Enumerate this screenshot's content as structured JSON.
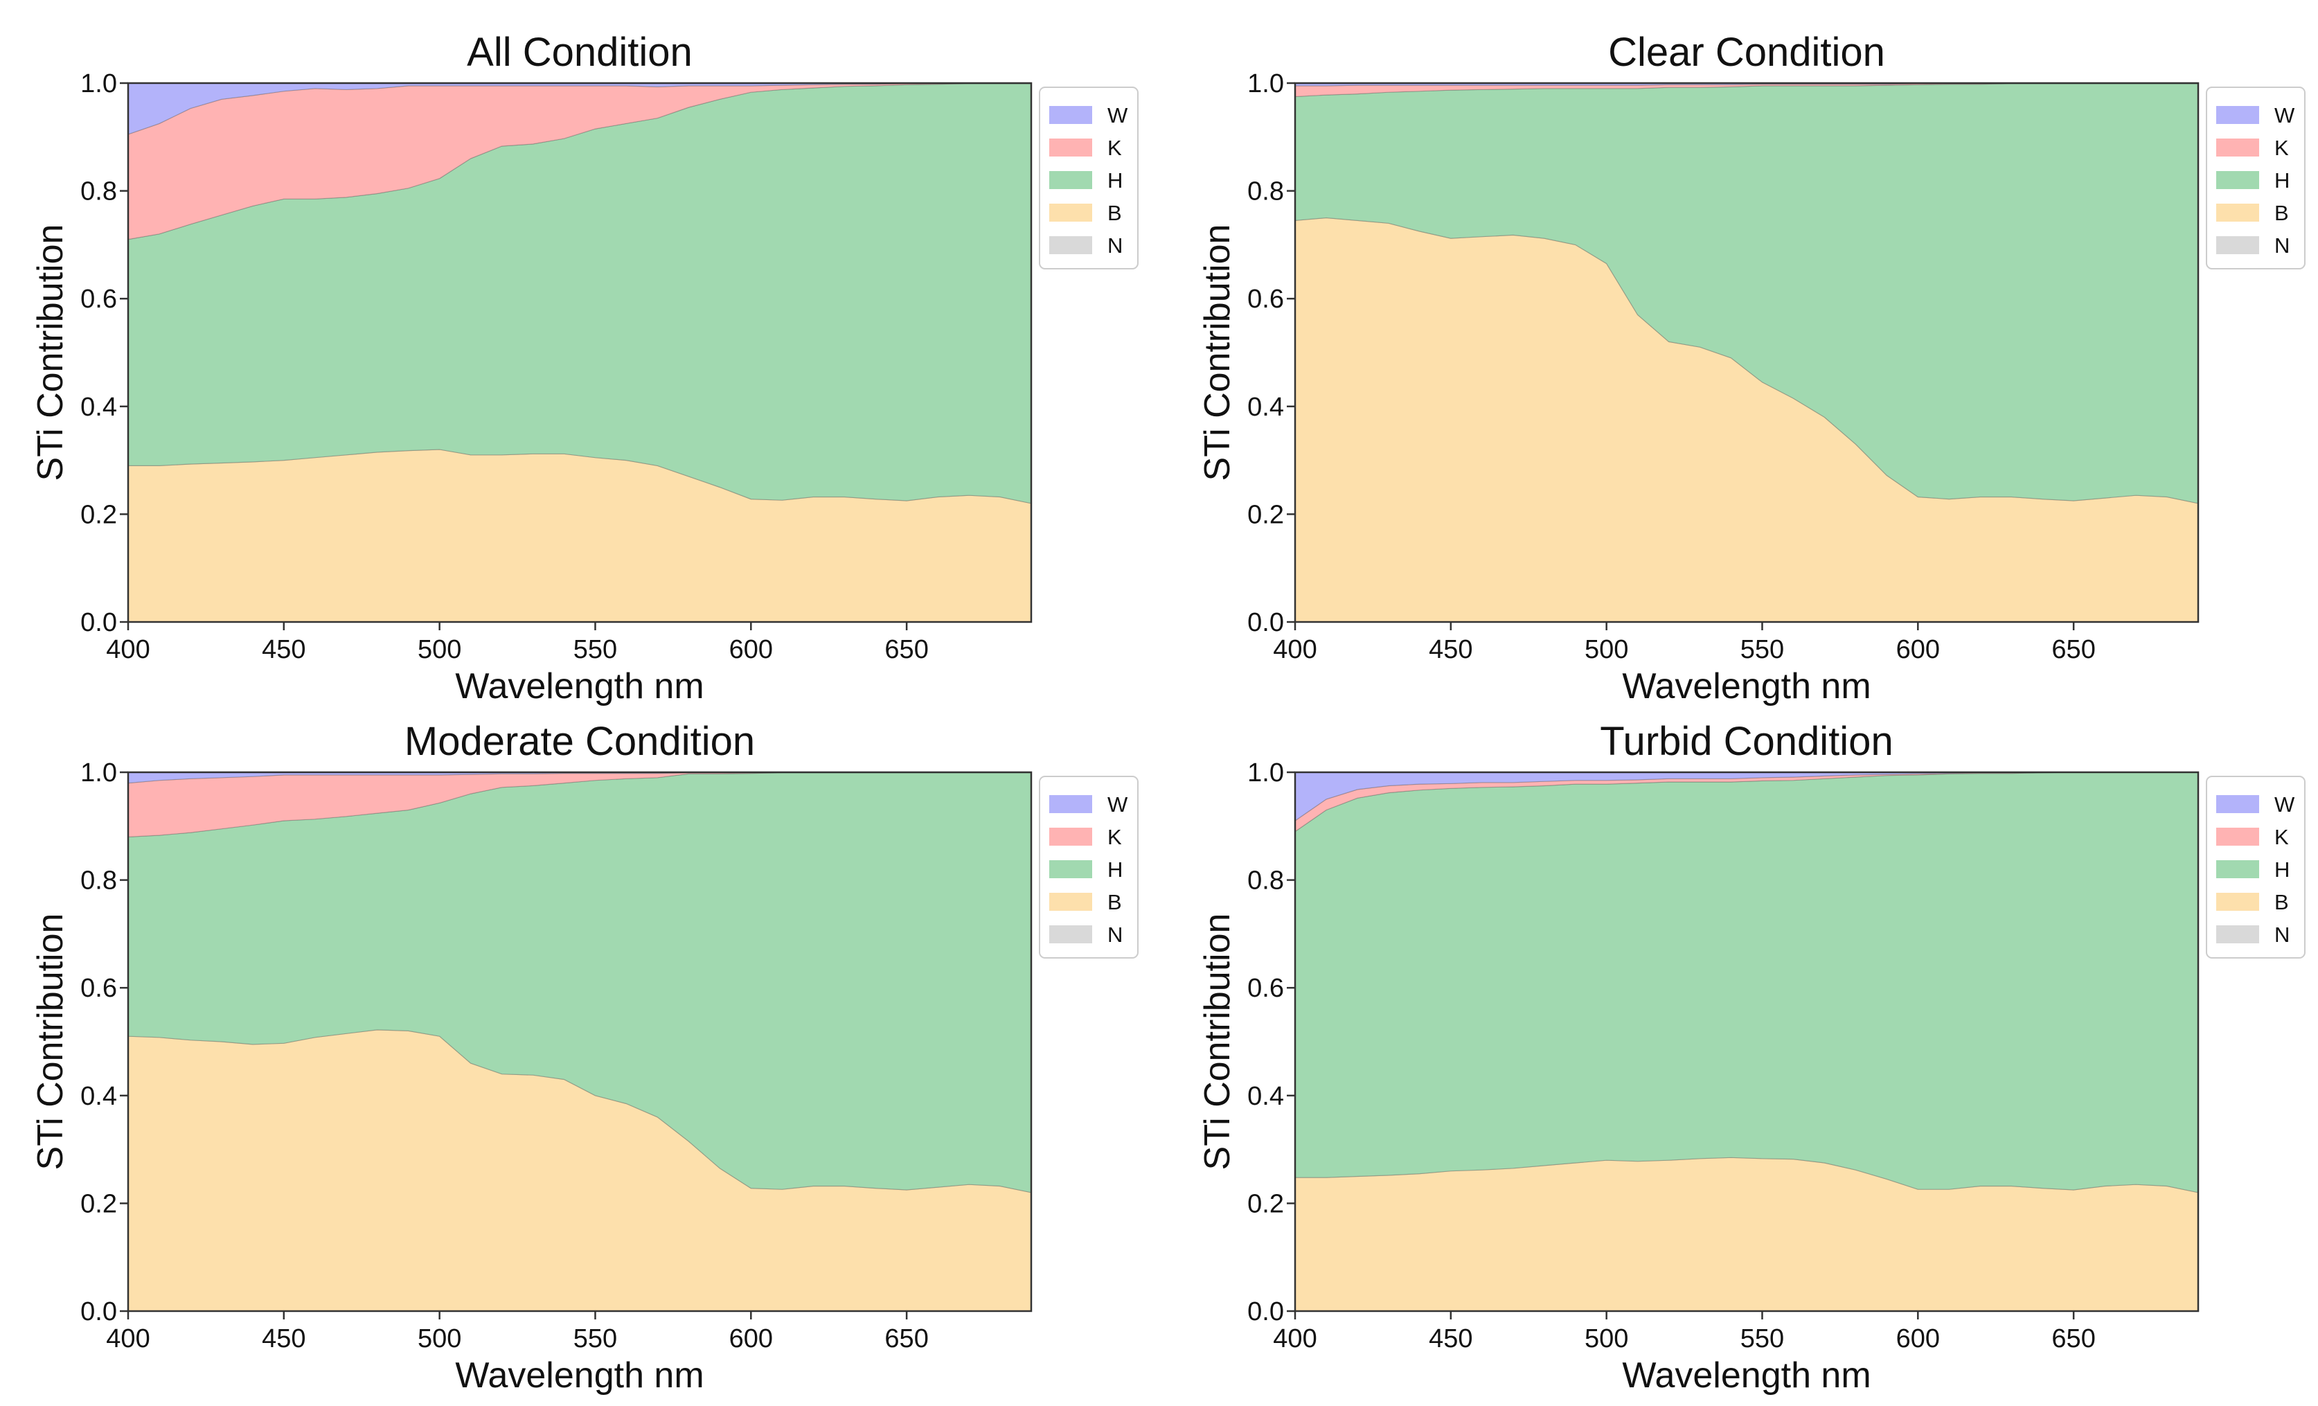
{
  "figure": {
    "title": ""
  },
  "chart_data": [
    {
      "type": "area",
      "stacked": true,
      "title": "All Condition",
      "xlabel": "Wavelength nm",
      "ylabel": "STi Contribution",
      "xlim": [
        400,
        690
      ],
      "ylim": [
        0,
        1
      ],
      "xticks": [
        "400",
        "450",
        "500",
        "550",
        "600",
        "650"
      ],
      "yticks": [
        "0.0",
        "0.2",
        "0.4",
        "0.6",
        "0.8",
        "1.0"
      ],
      "legend_position": "right",
      "x": [
        400,
        410,
        420,
        430,
        440,
        450,
        460,
        470,
        480,
        490,
        500,
        510,
        520,
        530,
        540,
        550,
        560,
        570,
        580,
        590,
        600,
        610,
        620,
        630,
        640,
        650,
        660,
        670,
        680,
        690
      ],
      "series": [
        {
          "name": "N",
          "color": "#d9d9d9",
          "values": [
            0,
            0,
            0,
            0,
            0,
            0,
            0,
            0,
            0,
            0,
            0,
            0,
            0,
            0,
            0,
            0,
            0,
            0,
            0,
            0,
            0,
            0,
            0,
            0,
            0,
            0,
            0,
            0,
            0,
            0
          ]
        },
        {
          "name": "B",
          "color": "#fde0ac",
          "values": [
            0.29,
            0.29,
            0.293,
            0.295,
            0.297,
            0.3,
            0.305,
            0.31,
            0.315,
            0.318,
            0.32,
            0.31,
            0.31,
            0.312,
            0.312,
            0.305,
            0.3,
            0.29,
            0.27,
            0.25,
            0.228,
            0.226,
            0.232,
            0.232,
            0.228,
            0.225,
            0.232,
            0.235,
            0.232,
            0.22
          ]
        },
        {
          "name": "H",
          "color": "#a1d9b0",
          "values": [
            0.42,
            0.43,
            0.445,
            0.46,
            0.475,
            0.485,
            0.48,
            0.478,
            0.48,
            0.487,
            0.503,
            0.55,
            0.573,
            0.575,
            0.585,
            0.61,
            0.625,
            0.645,
            0.685,
            0.72,
            0.755,
            0.762,
            0.759,
            0.762,
            0.767,
            0.772,
            0.766,
            0.764,
            0.767,
            0.779
          ]
        },
        {
          "name": "K",
          "color": "#ffb3b3",
          "values": [
            0.195,
            0.205,
            0.215,
            0.215,
            0.205,
            0.2,
            0.205,
            0.2,
            0.195,
            0.19,
            0.172,
            0.135,
            0.112,
            0.108,
            0.098,
            0.08,
            0.07,
            0.058,
            0.04,
            0.025,
            0.012,
            0.008,
            0.006,
            0.004,
            0.003,
            0.002,
            0.001,
            0.001,
            0.001,
            0.001
          ]
        },
        {
          "name": "W",
          "color": "#b3b3fa",
          "values": [
            0.095,
            0.075,
            0.047,
            0.03,
            0.023,
            0.015,
            0.01,
            0.012,
            0.01,
            0.005,
            0.005,
            0.005,
            0.005,
            0.005,
            0.005,
            0.005,
            0.005,
            0.007,
            0.005,
            0.005,
            0.005,
            0.004,
            0.003,
            0.002,
            0.002,
            0.001,
            0.001,
            0,
            0,
            0
          ]
        }
      ]
    },
    {
      "type": "area",
      "stacked": true,
      "title": "Clear Condition",
      "xlabel": "Wavelength nm",
      "ylabel": "STi Contribution",
      "xlim": [
        400,
        690
      ],
      "ylim": [
        0,
        1
      ],
      "xticks": [
        "400",
        "450",
        "500",
        "550",
        "600",
        "650"
      ],
      "yticks": [
        "0.0",
        "0.2",
        "0.4",
        "0.6",
        "0.8",
        "1.0"
      ],
      "legend_position": "right",
      "x": [
        400,
        410,
        420,
        430,
        440,
        450,
        460,
        470,
        480,
        490,
        500,
        510,
        520,
        530,
        540,
        550,
        560,
        570,
        580,
        590,
        600,
        610,
        620,
        630,
        640,
        650,
        660,
        670,
        680,
        690
      ],
      "series": [
        {
          "name": "N",
          "color": "#d9d9d9",
          "values": [
            0,
            0,
            0,
            0,
            0,
            0,
            0,
            0,
            0,
            0,
            0,
            0,
            0,
            0,
            0,
            0,
            0,
            0,
            0,
            0,
            0,
            0,
            0,
            0,
            0,
            0,
            0,
            0,
            0,
            0
          ]
        },
        {
          "name": "B",
          "color": "#fde0ac",
          "values": [
            0.745,
            0.75,
            0.745,
            0.74,
            0.725,
            0.712,
            0.715,
            0.718,
            0.712,
            0.7,
            0.665,
            0.57,
            0.52,
            0.51,
            0.49,
            0.445,
            0.415,
            0.38,
            0.33,
            0.272,
            0.232,
            0.228,
            0.232,
            0.232,
            0.228,
            0.225,
            0.23,
            0.235,
            0.232,
            0.22
          ]
        },
        {
          "name": "H",
          "color": "#a1d9b0",
          "values": [
            0.23,
            0.228,
            0.235,
            0.243,
            0.26,
            0.275,
            0.273,
            0.271,
            0.278,
            0.29,
            0.325,
            0.42,
            0.472,
            0.482,
            0.503,
            0.55,
            0.58,
            0.615,
            0.665,
            0.724,
            0.765,
            0.77,
            0.766,
            0.767,
            0.771,
            0.774,
            0.769,
            0.764,
            0.767,
            0.779
          ]
        },
        {
          "name": "K",
          "color": "#ffb3b3",
          "values": [
            0.02,
            0.017,
            0.016,
            0.013,
            0.011,
            0.009,
            0.008,
            0.007,
            0.006,
            0.006,
            0.006,
            0.006,
            0.005,
            0.005,
            0.004,
            0.003,
            0.003,
            0.003,
            0.003,
            0.002,
            0.002,
            0.001,
            0.001,
            0.001,
            0.001,
            0.001,
            0.001,
            0.001,
            0.001,
            0.001
          ]
        },
        {
          "name": "W",
          "color": "#b3b3fa",
          "values": [
            0.005,
            0.005,
            0.004,
            0.004,
            0.004,
            0.004,
            0.004,
            0.004,
            0.004,
            0.004,
            0.004,
            0.004,
            0.003,
            0.003,
            0.003,
            0.002,
            0.002,
            0.002,
            0.002,
            0.002,
            0.001,
            0.001,
            0.001,
            0,
            0,
            0,
            0,
            0,
            0,
            0
          ]
        }
      ]
    },
    {
      "type": "area",
      "stacked": true,
      "title": "Moderate Condition",
      "xlabel": "Wavelength nm",
      "ylabel": "STi Contribution",
      "xlim": [
        400,
        690
      ],
      "ylim": [
        0,
        1
      ],
      "xticks": [
        "400",
        "450",
        "500",
        "550",
        "600",
        "650"
      ],
      "yticks": [
        "0.0",
        "0.2",
        "0.4",
        "0.6",
        "0.8",
        "1.0"
      ],
      "legend_position": "right",
      "x": [
        400,
        410,
        420,
        430,
        440,
        450,
        460,
        470,
        480,
        490,
        500,
        510,
        520,
        530,
        540,
        550,
        560,
        570,
        580,
        590,
        600,
        610,
        620,
        630,
        640,
        650,
        660,
        670,
        680,
        690
      ],
      "series": [
        {
          "name": "N",
          "color": "#d9d9d9",
          "values": [
            0,
            0,
            0,
            0,
            0,
            0,
            0,
            0,
            0,
            0,
            0,
            0,
            0,
            0,
            0,
            0,
            0,
            0,
            0,
            0,
            0,
            0,
            0,
            0,
            0,
            0,
            0,
            0,
            0,
            0
          ]
        },
        {
          "name": "B",
          "color": "#fde0ac",
          "values": [
            0.51,
            0.508,
            0.503,
            0.5,
            0.495,
            0.497,
            0.508,
            0.515,
            0.522,
            0.52,
            0.51,
            0.46,
            0.44,
            0.438,
            0.43,
            0.4,
            0.385,
            0.36,
            0.315,
            0.265,
            0.228,
            0.226,
            0.232,
            0.232,
            0.228,
            0.225,
            0.23,
            0.235,
            0.232,
            0.22
          ]
        },
        {
          "name": "H",
          "color": "#a1d9b0",
          "values": [
            0.37,
            0.375,
            0.385,
            0.395,
            0.407,
            0.413,
            0.405,
            0.403,
            0.402,
            0.41,
            0.433,
            0.5,
            0.532,
            0.537,
            0.55,
            0.585,
            0.603,
            0.63,
            0.682,
            0.732,
            0.77,
            0.773,
            0.767,
            0.767,
            0.771,
            0.774,
            0.769,
            0.764,
            0.767,
            0.779
          ]
        },
        {
          "name": "K",
          "color": "#ffb3b3",
          "values": [
            0.1,
            0.102,
            0.1,
            0.095,
            0.09,
            0.085,
            0.082,
            0.077,
            0.071,
            0.065,
            0.052,
            0.036,
            0.025,
            0.022,
            0.018,
            0.013,
            0.01,
            0.008,
            0.002,
            0.002,
            0.001,
            0.001,
            0.001,
            0.001,
            0.001,
            0.001,
            0.001,
            0.001,
            0.001,
            0.001
          ]
        },
        {
          "name": "W",
          "color": "#b3b3fa",
          "values": [
            0.02,
            0.015,
            0.012,
            0.01,
            0.008,
            0.005,
            0.005,
            0.005,
            0.005,
            0.005,
            0.005,
            0.004,
            0.003,
            0.003,
            0.002,
            0.002,
            0.002,
            0.002,
            0.001,
            0.001,
            0.001,
            0,
            0,
            0,
            0,
            0,
            0,
            0,
            0,
            0
          ]
        }
      ]
    },
    {
      "type": "area",
      "stacked": true,
      "title": "Turbid Condition",
      "xlabel": "Wavelength nm",
      "ylabel": "STi Contribution",
      "xlim": [
        400,
        690
      ],
      "ylim": [
        0,
        1
      ],
      "xticks": [
        "400",
        "450",
        "500",
        "550",
        "600",
        "650"
      ],
      "yticks": [
        "0.0",
        "0.2",
        "0.4",
        "0.6",
        "0.8",
        "1.0"
      ],
      "legend_position": "right",
      "x": [
        400,
        410,
        420,
        430,
        440,
        450,
        460,
        470,
        480,
        490,
        500,
        510,
        520,
        530,
        540,
        550,
        560,
        570,
        580,
        590,
        600,
        610,
        620,
        630,
        640,
        650,
        660,
        670,
        680,
        690
      ],
      "series": [
        {
          "name": "N",
          "color": "#d9d9d9",
          "values": [
            0,
            0,
            0,
            0,
            0,
            0,
            0,
            0,
            0,
            0,
            0,
            0,
            0,
            0,
            0,
            0,
            0,
            0,
            0,
            0,
            0,
            0,
            0,
            0,
            0,
            0,
            0,
            0,
            0,
            0
          ]
        },
        {
          "name": "B",
          "color": "#fde0ac",
          "values": [
            0.248,
            0.248,
            0.25,
            0.252,
            0.255,
            0.26,
            0.262,
            0.265,
            0.27,
            0.275,
            0.28,
            0.278,
            0.28,
            0.283,
            0.285,
            0.283,
            0.282,
            0.275,
            0.262,
            0.245,
            0.226,
            0.226,
            0.232,
            0.232,
            0.228,
            0.225,
            0.232,
            0.235,
            0.232,
            0.22
          ]
        },
        {
          "name": "H",
          "color": "#a1d9b0",
          "values": [
            0.642,
            0.682,
            0.702,
            0.71,
            0.712,
            0.71,
            0.71,
            0.708,
            0.705,
            0.703,
            0.698,
            0.702,
            0.702,
            0.699,
            0.697,
            0.701,
            0.703,
            0.713,
            0.729,
            0.749,
            0.769,
            0.771,
            0.766,
            0.766,
            0.771,
            0.775,
            0.768,
            0.765,
            0.768,
            0.78
          ]
        },
        {
          "name": "K",
          "color": "#ffb3b3",
          "values": [
            0.02,
            0.02,
            0.016,
            0.013,
            0.011,
            0.009,
            0.009,
            0.008,
            0.008,
            0.007,
            0.007,
            0.006,
            0.006,
            0.006,
            0.006,
            0.006,
            0.006,
            0.005,
            0.004,
            0.002,
            0.002,
            0.001,
            0.001,
            0.001,
            0.001,
            0,
            0,
            0,
            0,
            0
          ]
        },
        {
          "name": "W",
          "color": "#b3b3fa",
          "values": [
            0.09,
            0.05,
            0.032,
            0.025,
            0.022,
            0.021,
            0.019,
            0.019,
            0.017,
            0.015,
            0.015,
            0.014,
            0.012,
            0.012,
            0.012,
            0.01,
            0.009,
            0.007,
            0.005,
            0.004,
            0.003,
            0.002,
            0.001,
            0.001,
            0,
            0,
            0,
            0,
            0,
            0
          ]
        }
      ]
    }
  ],
  "legend": {
    "order": [
      "W",
      "K",
      "H",
      "B",
      "N"
    ]
  },
  "style": {
    "edge_color": "#555555",
    "axis_color": "#333333"
  }
}
